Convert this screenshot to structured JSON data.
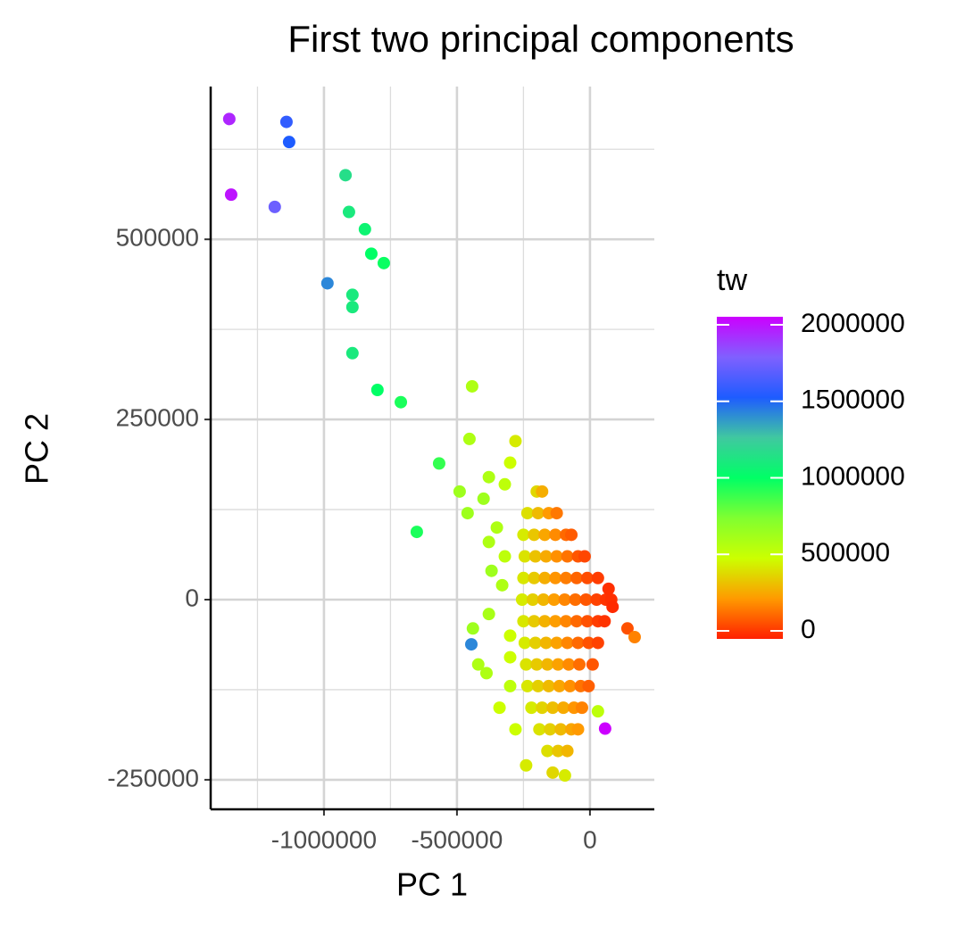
{
  "chart_data": {
    "type": "scatter",
    "title": "First two principal components",
    "x_label": "PC 1",
    "y_label": "PC 2",
    "legend_title": "tw",
    "xlim": [
      -1426000,
      242000
    ],
    "ylim": [
      -291000,
      712000
    ],
    "xticks": [
      -1000000,
      -500000,
      0
    ],
    "yticks": [
      -250000,
      0,
      250000,
      500000
    ],
    "xminor": [
      -1250000,
      -750000,
      -250000
    ],
    "yminor": [
      -125000,
      125000,
      375000,
      625000
    ],
    "grid": true,
    "clim": [
      0,
      2000000
    ],
    "cticks": [
      0,
      500000,
      1000000,
      1500000,
      2000000
    ],
    "colorscale": [
      [
        0,
        "#ff2000"
      ],
      [
        250000,
        "#ff9a00"
      ],
      [
        500000,
        "#ccff00"
      ],
      [
        750000,
        "#80ff30"
      ],
      [
        1000000,
        "#00ff66"
      ],
      [
        1250000,
        "#40c8a0"
      ],
      [
        1500000,
        "#1e5cff"
      ],
      [
        1750000,
        "#8060ff"
      ],
      [
        2000000,
        "#cc00ff"
      ]
    ],
    "x": [
      -1356000,
      -1141000,
      -1131000,
      -1349000,
      -1185000,
      -919000,
      -906000,
      -846000,
      -822000,
      -775000,
      -987000,
      -893000,
      -893000,
      -893000,
      -799000,
      -711000,
      -443000,
      -567000,
      -651000,
      -453000,
      -446000,
      57000,
      141000,
      168000,
      30000,
      -94000,
      -389000,
      -300000,
      -330000,
      -370000,
      -350000,
      -400000,
      -420000,
      -380000,
      -300000,
      -280000,
      -320000,
      -380000,
      -280000,
      -300000,
      -490000,
      -460000,
      -380000,
      -320000,
      -440000,
      -300000,
      -340000,
      -240000,
      -140000,
      -200000,
      -180000,
      -235000,
      -195000,
      -155000,
      -125000,
      -250000,
      -210000,
      -170000,
      -130000,
      -90000,
      -70000,
      -245000,
      -205000,
      -165000,
      -125000,
      -85000,
      -45000,
      -20000,
      -250000,
      -210000,
      -170000,
      -130000,
      -90000,
      -50000,
      -10000,
      30000,
      -255000,
      -215000,
      -175000,
      -135000,
      -95000,
      -55000,
      -15000,
      25000,
      60000,
      80000,
      -250000,
      -210000,
      -170000,
      -130000,
      -90000,
      -50000,
      -10000,
      30000,
      55000,
      -245000,
      -205000,
      -165000,
      -125000,
      -85000,
      -45000,
      -5000,
      30000,
      -240000,
      -200000,
      -160000,
      -120000,
      -80000,
      -40000,
      10000,
      -235000,
      -195000,
      -155000,
      -115000,
      -75000,
      -35000,
      -5000,
      -220000,
      -180000,
      -140000,
      -100000,
      -60000,
      -30000,
      -190000,
      -150000,
      -110000,
      -70000,
      -45000,
      -160000,
      -120000,
      -85000,
      70000,
      85000
    ],
    "y": [
      667000,
      663000,
      635000,
      562000,
      545000,
      589000,
      538000,
      514000,
      480000,
      467000,
      439000,
      423000,
      406000,
      342000,
      291000,
      274000,
      296000,
      189000,
      94000,
      223000,
      -62000,
      -179000,
      -40000,
      -52000,
      -155000,
      -244000,
      -102000,
      -50000,
      20000,
      40000,
      100000,
      140000,
      -90000,
      -20000,
      -120000,
      -180000,
      160000,
      170000,
      220000,
      190000,
      150000,
      120000,
      80000,
      60000,
      -40000,
      -80000,
      -150000,
      -230000,
      -240000,
      150000,
      150000,
      120000,
      120000,
      120000,
      120000,
      90000,
      90000,
      90000,
      90000,
      90000,
      90000,
      60000,
      60000,
      60000,
      60000,
      60000,
      60000,
      60000,
      30000,
      30000,
      30000,
      30000,
      30000,
      30000,
      30000,
      30000,
      0,
      0,
      0,
      0,
      0,
      0,
      0,
      0,
      0,
      0,
      -30000,
      -30000,
      -30000,
      -30000,
      -30000,
      -30000,
      -30000,
      -30000,
      -30000,
      -60000,
      -60000,
      -60000,
      -60000,
      -60000,
      -60000,
      -60000,
      -60000,
      -90000,
      -90000,
      -90000,
      -90000,
      -90000,
      -90000,
      -90000,
      -120000,
      -120000,
      -120000,
      -120000,
      -120000,
      -120000,
      -120000,
      -150000,
      -150000,
      -150000,
      -150000,
      -150000,
      -150000,
      -180000,
      -180000,
      -180000,
      -180000,
      -180000,
      -210000,
      -210000,
      -210000,
      15000,
      -10000
    ],
    "color_values": [
      1900000,
      1550000,
      1500000,
      1950000,
      1700000,
      1150000,
      1100000,
      1050000,
      1000000,
      980000,
      1400000,
      1100000,
      1100000,
      1100000,
      1000000,
      950000,
      600000,
      900000,
      950000,
      600000,
      1400000,
      2000000,
      100000,
      200000,
      550000,
      450000,
      600000,
      500000,
      600000,
      650000,
      600000,
      650000,
      600000,
      620000,
      550000,
      500000,
      550000,
      600000,
      450000,
      500000,
      650000,
      650000,
      600000,
      550000,
      650000,
      500000,
      500000,
      450000,
      400000,
      400000,
      300000,
      420000,
      330000,
      250000,
      180000,
      450000,
      360000,
      280000,
      220000,
      150000,
      120000,
      430000,
      350000,
      290000,
      230000,
      170000,
      110000,
      80000,
      440000,
      370000,
      300000,
      240000,
      190000,
      140000,
      90000,
      60000,
      450000,
      380000,
      320000,
      260000,
      210000,
      160000,
      110000,
      70000,
      40000,
      30000,
      440000,
      370000,
      310000,
      260000,
      210000,
      150000,
      100000,
      60000,
      40000,
      450000,
      380000,
      320000,
      270000,
      210000,
      150000,
      100000,
      70000,
      430000,
      370000,
      320000,
      270000,
      220000,
      160000,
      110000,
      440000,
      380000,
      330000,
      280000,
      230000,
      170000,
      130000,
      450000,
      390000,
      340000,
      290000,
      240000,
      200000,
      430000,
      380000,
      330000,
      280000,
      250000,
      420000,
      360000,
      320000,
      30000,
      20000
    ]
  }
}
